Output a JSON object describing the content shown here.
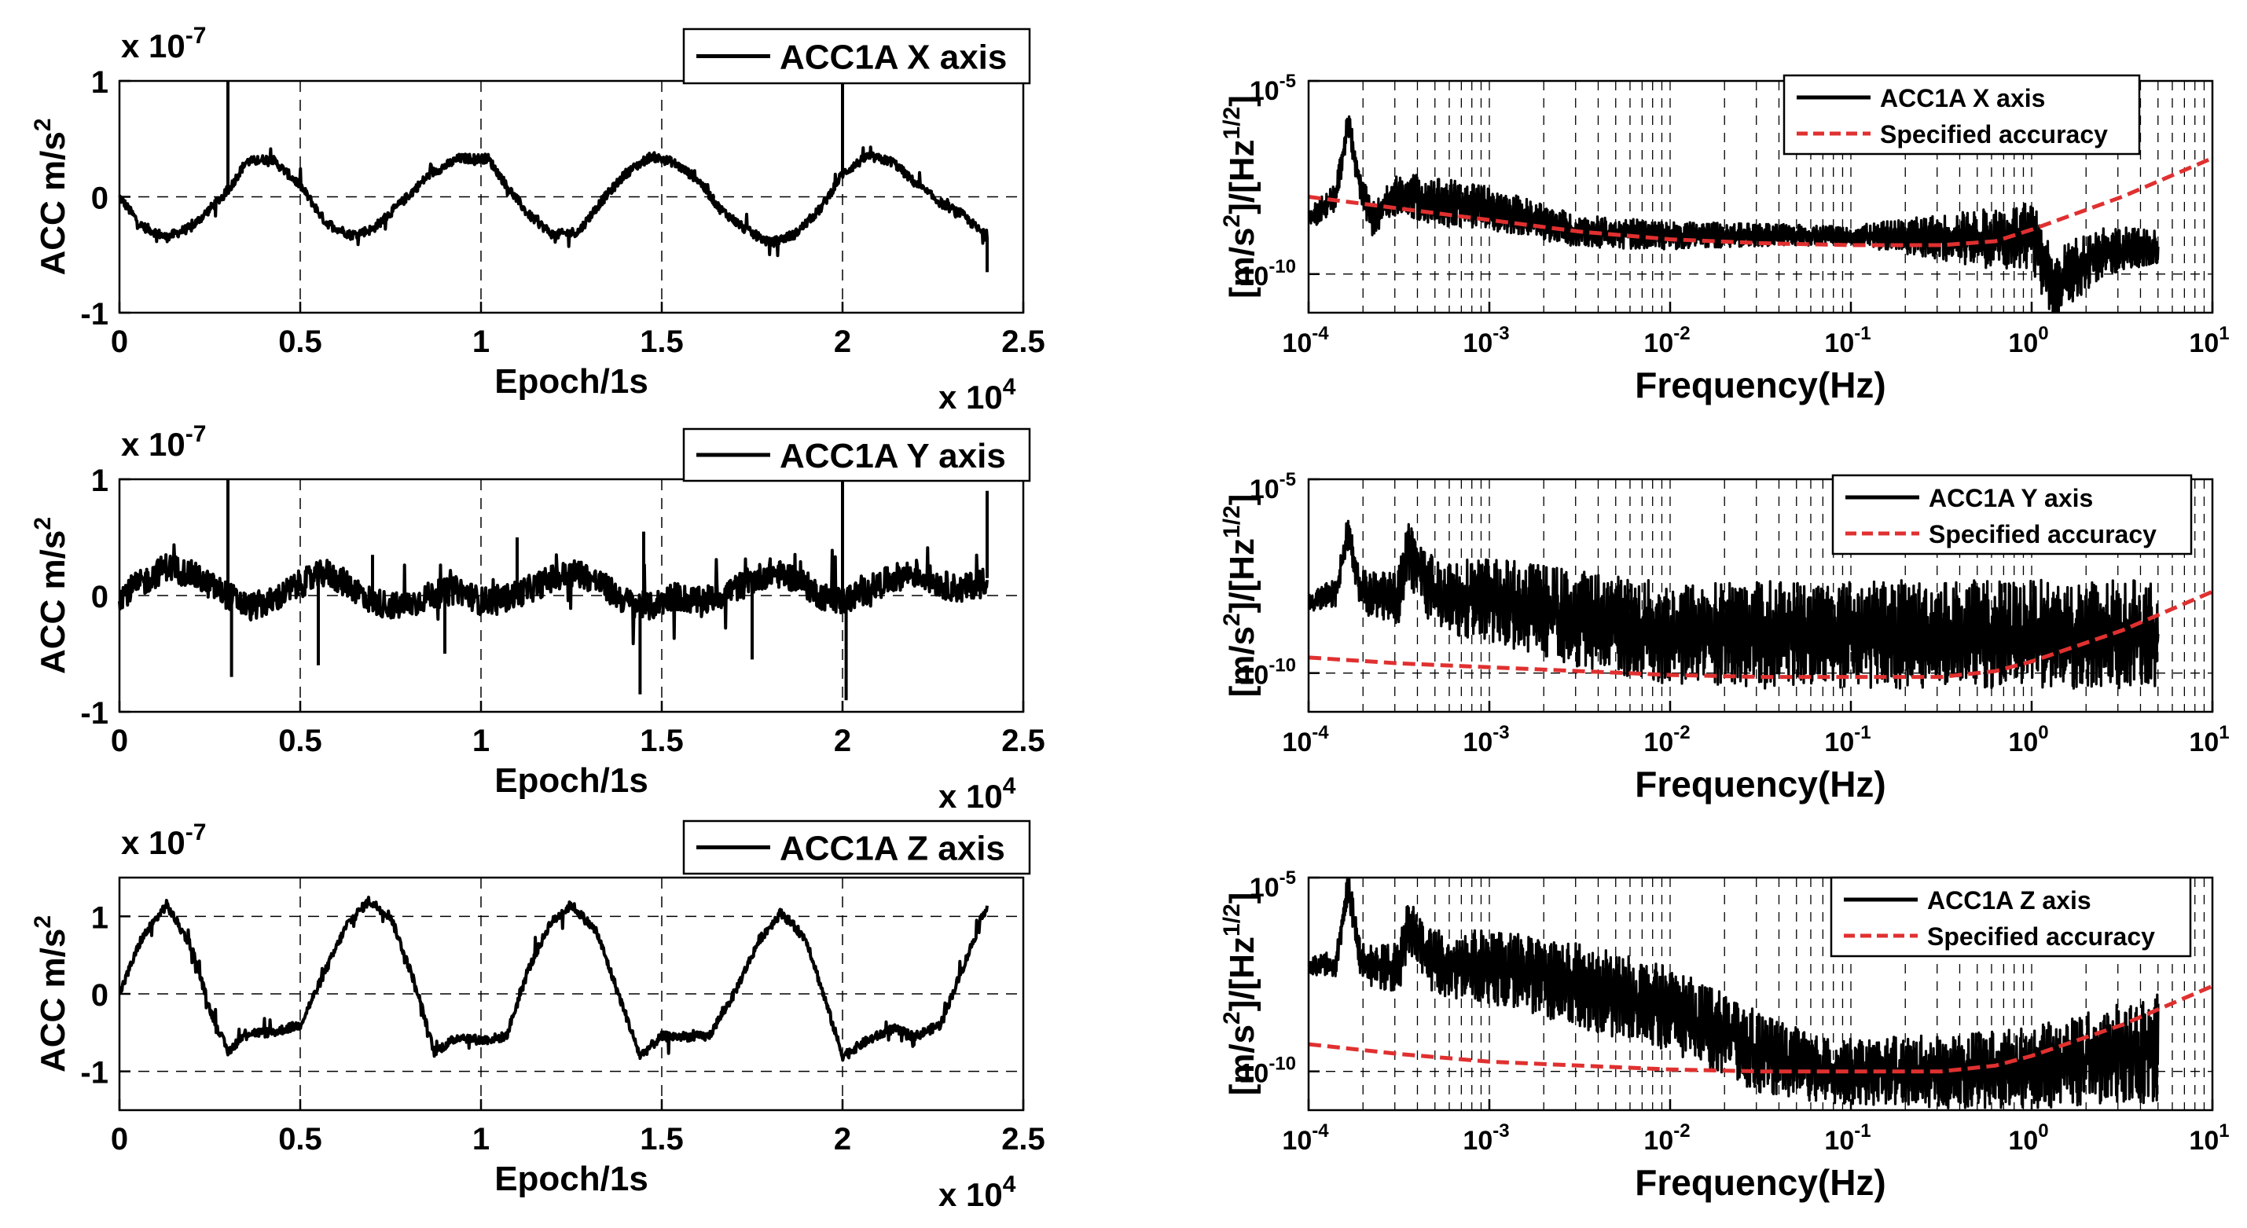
{
  "chart_data": [
    {
      "id": "time-x",
      "type": "line",
      "group": "time",
      "title": "",
      "xlabel": "Epoch/1s",
      "ylabel": "ACC m/s",
      "ylabel_sup": "2",
      "y_multiplier": "x 10",
      "y_multiplier_exp": "-7",
      "x_multiplier": "x 10",
      "x_multiplier_exp": "4",
      "xlim": [
        0,
        2.5
      ],
      "ylim": [
        -1,
        1
      ],
      "xticks": [
        "0",
        "0.5",
        "1",
        "1.5",
        "2",
        "2.5"
      ],
      "xtick_values": [
        0,
        0.5,
        1,
        1.5,
        2,
        2.5
      ],
      "yticks": [
        "-1",
        "0",
        "1"
      ],
      "ytick_values": [
        -1,
        0,
        1
      ],
      "grid": true,
      "legend": "top-right",
      "series": [
        {
          "name": "ACC1A X axis",
          "color": "#000000",
          "x": [
            0,
            0.06,
            0.13,
            0.2,
            0.3,
            0.35,
            0.42,
            0.5,
            0.57,
            0.64,
            0.7,
            0.78,
            0.86,
            0.94,
            1.02,
            1.07,
            1.13,
            1.2,
            1.27,
            1.33,
            1.4,
            1.47,
            1.53,
            1.6,
            1.66,
            1.73,
            1.8,
            1.87,
            1.94,
            2.0,
            2.07,
            2.14,
            2.2,
            2.27,
            2.33,
            2.4
          ],
          "values": [
            0.0,
            -0.25,
            -0.35,
            -0.26,
            0.05,
            0.3,
            0.33,
            0.1,
            -0.22,
            -0.33,
            -0.28,
            -0.05,
            0.2,
            0.33,
            0.33,
            0.1,
            -0.15,
            -0.33,
            -0.3,
            -0.05,
            0.2,
            0.35,
            0.3,
            0.15,
            -0.1,
            -0.28,
            -0.4,
            -0.32,
            -0.1,
            0.2,
            0.35,
            0.3,
            0.12,
            -0.05,
            -0.15,
            -0.35
          ],
          "spikes": [
            [
              0.3,
              1.0
            ],
            [
              2.0,
              1.0
            ],
            [
              2.4,
              -0.65
            ]
          ],
          "noise": 0.04
        }
      ]
    },
    {
      "id": "time-y",
      "type": "line",
      "group": "time",
      "title": "",
      "xlabel": "Epoch/1s",
      "ylabel": "ACC m/s",
      "ylabel_sup": "2",
      "y_multiplier": "x 10",
      "y_multiplier_exp": "-7",
      "x_multiplier": "x 10",
      "x_multiplier_exp": "4",
      "xlim": [
        0,
        2.5
      ],
      "ylim": [
        -1,
        1
      ],
      "xticks": [
        "0",
        "0.5",
        "1",
        "1.5",
        "2",
        "2.5"
      ],
      "xtick_values": [
        0,
        0.5,
        1,
        1.5,
        2,
        2.5
      ],
      "yticks": [
        "-1",
        "0",
        "1"
      ],
      "ytick_values": [
        -1,
        0,
        1
      ],
      "grid": true,
      "legend": "top-right",
      "series": [
        {
          "name": "ACC1A Y axis",
          "color": "#000000",
          "x": [
            0,
            0.06,
            0.13,
            0.2,
            0.3,
            0.36,
            0.42,
            0.5,
            0.57,
            0.64,
            0.7,
            0.78,
            0.86,
            0.94,
            1.0,
            1.07,
            1.13,
            1.2,
            1.27,
            1.33,
            1.4,
            1.47,
            1.53,
            1.6,
            1.66,
            1.73,
            1.8,
            1.87,
            1.94,
            2.0,
            2.07,
            2.14,
            2.2,
            2.27,
            2.33,
            2.4
          ],
          "values": [
            0.0,
            0.1,
            0.25,
            0.18,
            0.0,
            -0.1,
            -0.05,
            0.1,
            0.2,
            0.08,
            -0.05,
            -0.1,
            0.0,
            0.05,
            -0.05,
            -0.02,
            0.05,
            0.15,
            0.2,
            0.1,
            -0.05,
            -0.1,
            0.0,
            -0.05,
            0.0,
            0.1,
            0.2,
            0.15,
            0.0,
            -0.05,
            0.05,
            0.15,
            0.2,
            0.1,
            0.05,
            0.15
          ],
          "spikes": [
            [
              0.3,
              1.0
            ],
            [
              0.31,
              -0.7
            ],
            [
              0.55,
              -0.6
            ],
            [
              1.1,
              0.5
            ],
            [
              1.44,
              -0.85
            ],
            [
              1.45,
              0.55
            ],
            [
              2.0,
              1.0
            ],
            [
              2.01,
              -0.9
            ],
            [
              2.4,
              0.9
            ],
            [
              0.9,
              -0.5
            ],
            [
              0.7,
              0.35
            ],
            [
              1.75,
              -0.55
            ]
          ],
          "noise": 0.12
        }
      ]
    },
    {
      "id": "time-z",
      "type": "line",
      "group": "time",
      "title": "",
      "xlabel": "Epoch/1s",
      "ylabel": "ACC m/s",
      "ylabel_sup": "2",
      "y_multiplier": "x 10",
      "y_multiplier_exp": "-7",
      "x_multiplier": "x 10",
      "x_multiplier_exp": "4",
      "xlim": [
        0,
        2.5
      ],
      "ylim": [
        -1.5,
        1.5
      ],
      "xticks": [
        "0",
        "0.5",
        "1",
        "1.5",
        "2",
        "2.5"
      ],
      "xtick_values": [
        0,
        0.5,
        1,
        1.5,
        2,
        2.5
      ],
      "yticks": [
        "-1",
        "0",
        "1"
      ],
      "ytick_values": [
        -1,
        0,
        1
      ],
      "grid": true,
      "legend": "top-right",
      "series": [
        {
          "name": "ACC1A Z axis",
          "color": "#000000",
          "x": [
            0,
            0.06,
            0.13,
            0.2,
            0.25,
            0.3,
            0.35,
            0.42,
            0.5,
            0.57,
            0.63,
            0.69,
            0.75,
            0.82,
            0.87,
            0.94,
            1.0,
            1.07,
            1.13,
            1.19,
            1.25,
            1.32,
            1.38,
            1.44,
            1.5,
            1.57,
            1.63,
            1.7,
            1.77,
            1.83,
            1.9,
            1.96,
            2.0,
            2.07,
            2.14,
            2.2,
            2.27,
            2.33,
            2.4
          ],
          "values": [
            0.0,
            0.7,
            1.15,
            0.6,
            -0.2,
            -0.75,
            -0.5,
            -0.5,
            -0.4,
            0.3,
            0.9,
            1.2,
            1.0,
            0.1,
            -0.75,
            -0.55,
            -0.6,
            -0.55,
            0.3,
            0.9,
            1.15,
            0.8,
            0.0,
            -0.8,
            -0.55,
            -0.55,
            -0.55,
            0.0,
            0.7,
            1.05,
            0.7,
            -0.2,
            -0.8,
            -0.6,
            -0.45,
            -0.55,
            -0.4,
            0.3,
            1.15
          ],
          "spikes": [],
          "noise": 0.06
        }
      ]
    },
    {
      "id": "psd-x",
      "type": "line",
      "group": "psd",
      "title": "",
      "xlabel": "Frequency(Hz)",
      "ylabel_parts": [
        "[m/s",
        "2",
        "]/[Hz",
        "1/2",
        "]"
      ],
      "xscale": "log",
      "yscale": "log",
      "xlim_exp": [
        -4,
        1
      ],
      "ylim_exp": [
        -11,
        -5
      ],
      "xticks_base": "10",
      "xticks_exp": [
        "-4",
        "-3",
        "-2",
        "-1",
        "0",
        "1"
      ],
      "yticks_base": "10",
      "yticks_exp": [
        "-10",
        "-5"
      ],
      "ytick_values_exp": [
        -10,
        -5
      ],
      "grid": true,
      "legend": "top-right",
      "series": [
        {
          "name": "ACC1A X axis",
          "color": "#000000",
          "logf": [
            -4.0,
            -3.85,
            -3.78,
            -3.72,
            -3.65,
            -3.5,
            -3.3,
            -3.0,
            -2.5,
            -2.0,
            -1.5,
            -1.0,
            -0.5,
            0.0,
            0.05,
            0.12,
            0.2,
            0.4,
            0.7
          ],
          "logpsd": [
            -8.6,
            -8.0,
            -6.1,
            -7.6,
            -8.6,
            -7.9,
            -8.1,
            -8.3,
            -8.9,
            -9.0,
            -9.0,
            -9.0,
            -9.05,
            -9.1,
            -9.5,
            -10.5,
            -10.0,
            -9.4,
            -9.3
          ],
          "band": [
            [
              -4.0,
              0.4
            ],
            [
              -3.3,
              0.9
            ],
            [
              -2.5,
              0.6
            ],
            [
              -1.0,
              0.35
            ],
            [
              0.05,
              1.4
            ],
            [
              0.7,
              0.6
            ]
          ]
        },
        {
          "name": "Specified accuracy",
          "color": "#e03030",
          "dashed": true,
          "logf": [
            -4,
            -3.5,
            -3,
            -2.5,
            -2,
            -1.5,
            -1,
            -0.5,
            -0.2,
            0,
            0.5,
            1
          ],
          "logpsd": [
            -8.0,
            -8.3,
            -8.6,
            -8.9,
            -9.1,
            -9.2,
            -9.25,
            -9.25,
            -9.15,
            -8.85,
            -8.0,
            -7.0
          ]
        }
      ]
    },
    {
      "id": "psd-y",
      "type": "line",
      "group": "psd",
      "title": "",
      "xlabel": "Frequency(Hz)",
      "ylabel_parts": [
        "[m/s",
        "2",
        "]/[Hz",
        "1/2",
        "]"
      ],
      "xscale": "log",
      "yscale": "log",
      "xlim_exp": [
        -4,
        1
      ],
      "ylim_exp": [
        -11,
        -5
      ],
      "xticks_base": "10",
      "xticks_exp": [
        "-4",
        "-3",
        "-2",
        "-1",
        "0",
        "1"
      ],
      "yticks_base": "10",
      "yticks_exp": [
        "-10",
        "-5"
      ],
      "ytick_values_exp": [
        -10,
        -5
      ],
      "grid": true,
      "legend": "top-right",
      "series": [
        {
          "name": "ACC1A Y axis",
          "color": "#000000",
          "logf": [
            -4.0,
            -3.85,
            -3.78,
            -3.72,
            -3.65,
            -3.5,
            -3.45,
            -3.3,
            -3.0,
            -2.5,
            -2.0,
            -1.5,
            -1.0,
            -0.5,
            0.0,
            0.3,
            0.7
          ],
          "logpsd": [
            -8.2,
            -7.9,
            -6.3,
            -7.8,
            -8.0,
            -8.0,
            -6.9,
            -8.0,
            -8.1,
            -8.6,
            -9.0,
            -9.0,
            -9.0,
            -9.0,
            -9.0,
            -9.0,
            -9.0
          ],
          "band": [
            [
              -4.0,
              0.3
            ],
            [
              -3.3,
              1.4
            ],
            [
              -2.5,
              1.8
            ],
            [
              -1.5,
              2.0
            ],
            [
              -0.5,
              2.0
            ],
            [
              0.7,
              2.0
            ]
          ]
        },
        {
          "name": "Specified accuracy",
          "color": "#e03030",
          "dashed": true,
          "logf": [
            -4,
            -3.5,
            -3,
            -2.5,
            -2,
            -1.5,
            -1,
            -0.5,
            -0.2,
            0,
            0.5,
            1
          ],
          "logpsd": [
            -9.6,
            -9.75,
            -9.85,
            -9.95,
            -10.05,
            -10.1,
            -10.1,
            -10.1,
            -9.95,
            -9.7,
            -8.9,
            -7.9
          ]
        }
      ]
    },
    {
      "id": "psd-z",
      "type": "line",
      "group": "psd",
      "title": "",
      "xlabel": "Frequency(Hz)",
      "ylabel_parts": [
        "[m/s",
        "2",
        "]/[Hz",
        "1/2",
        "]"
      ],
      "xscale": "log",
      "yscale": "log",
      "xlim_exp": [
        -4,
        1
      ],
      "ylim_exp": [
        -11,
        -5
      ],
      "xticks_base": "10",
      "xticks_exp": [
        "-4",
        "-3",
        "-2",
        "-1",
        "0",
        "1"
      ],
      "yticks_base": "10",
      "yticks_exp": [
        "-10",
        "-5"
      ],
      "ytick_values_exp": [
        -10,
        -5
      ],
      "grid": true,
      "legend": "top-right",
      "series": [
        {
          "name": "ACC1A Z axis",
          "color": "#000000",
          "logf": [
            -4.0,
            -3.85,
            -3.78,
            -3.72,
            -3.65,
            -3.5,
            -3.45,
            -3.3,
            -3.0,
            -2.5,
            -2.0,
            -1.5,
            -1.2,
            -1.0,
            -0.5,
            0.0,
            0.3,
            0.7
          ],
          "logpsd": [
            -7.3,
            -7.2,
            -5.2,
            -7.0,
            -7.3,
            -7.3,
            -6.3,
            -7.2,
            -7.3,
            -7.8,
            -8.4,
            -9.5,
            -10.0,
            -10.0,
            -10.0,
            -9.9,
            -9.7,
            -9.4
          ],
          "band": [
            [
              -4.0,
              0.3
            ],
            [
              -3.3,
              1.2
            ],
            [
              -2.5,
              1.6
            ],
            [
              -1.5,
              1.5
            ],
            [
              -1.0,
              1.2
            ],
            [
              0.0,
              1.5
            ],
            [
              0.7,
              2.0
            ]
          ]
        },
        {
          "name": "Specified accuracy",
          "color": "#e03030",
          "dashed": true,
          "logf": [
            -4,
            -3.5,
            -3,
            -2.5,
            -2,
            -1.5,
            -1,
            -0.5,
            -0.2,
            0,
            0.5,
            1
          ],
          "logpsd": [
            -9.3,
            -9.55,
            -9.75,
            -9.85,
            -9.95,
            -10.0,
            -10.0,
            -10.0,
            -9.85,
            -9.6,
            -8.8,
            -7.8
          ]
        }
      ]
    }
  ]
}
